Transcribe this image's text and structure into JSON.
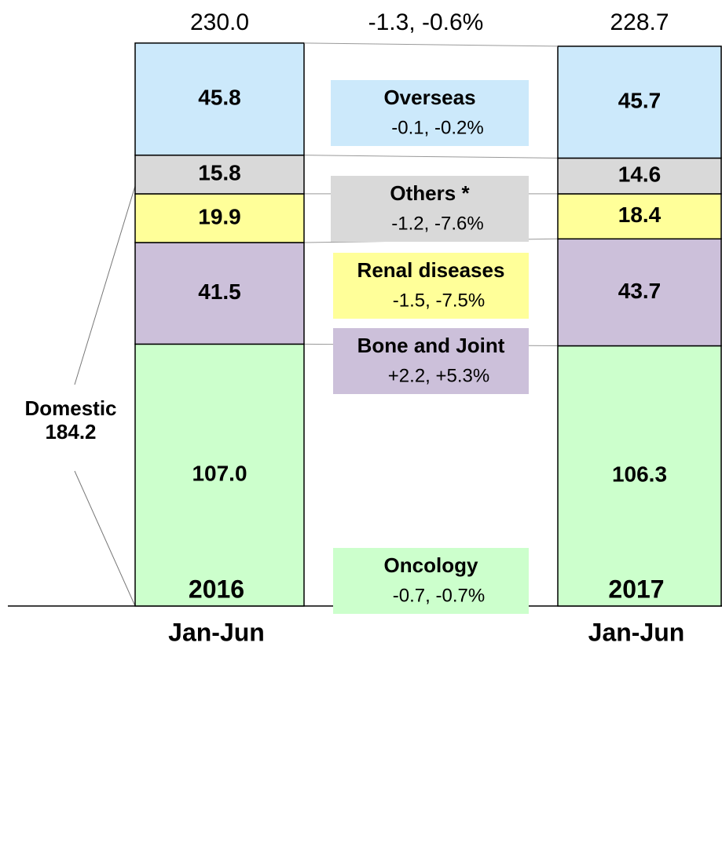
{
  "chart_data": {
    "type": "bar",
    "stacked": true,
    "categories": [
      [
        "2016",
        "Jan-Jun"
      ],
      [
        "2017",
        "Jan-Jun"
      ]
    ],
    "series": [
      {
        "name": "Oncology",
        "color": "#ccffcc",
        "values": [
          107,
          106.3
        ],
        "value_labels": [
          "107.0",
          "106.3"
        ],
        "change": "-0.7, -0.7%"
      },
      {
        "name": "Bone and Joint",
        "color": "#ccc0da",
        "values": [
          41.5,
          43.7
        ],
        "change": "+2.2, +5.3%"
      },
      {
        "name": "Renal diseases",
        "color": "#ffff99",
        "values": [
          19.9,
          18.4
        ],
        "change": "-1.5, -7.5%"
      },
      {
        "name": "Others *",
        "color": "#d9d9d9",
        "values": [
          15.8,
          14.6
        ],
        "change": "-1.2, -7.6%"
      },
      {
        "name": "Overseas",
        "color": "#cce9fb",
        "values": [
          45.8,
          45.7
        ],
        "change": "-0.1, -0.2%"
      }
    ],
    "totals": {
      "values": [
        230,
        228.7
      ],
      "value_labels": [
        "230.0",
        "228.7"
      ]
    },
    "total_change": "-1.3, -0.6%",
    "domestic": {
      "name": "Domestic",
      "value": 184.2
    }
  }
}
